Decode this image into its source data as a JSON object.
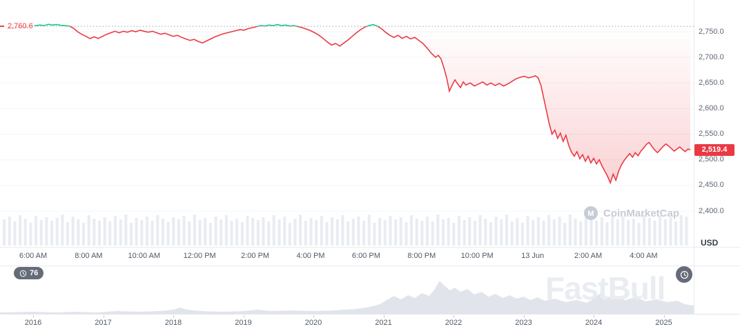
{
  "colors": {
    "up": "#16c784",
    "down": "#ea3943",
    "badge_bg": "#ea3943",
    "volume_bar": "#e9edf2",
    "navigator_fill": "#e1e5eb",
    "grid": "#f3f5f8",
    "axis_text": "#5d6573"
  },
  "price_axis": {
    "unit_label": "USD",
    "current_price_label": "2,519.4",
    "reference_price_label": "2,760.6",
    "ticks": [
      {
        "label": "2,750.0",
        "value": 2750
      },
      {
        "label": "2,700.0",
        "value": 2700
      },
      {
        "label": "2,650.0",
        "value": 2650
      },
      {
        "label": "2,600.0",
        "value": 2600
      },
      {
        "label": "2,550.0",
        "value": 2550
      },
      {
        "label": "2,500.0",
        "value": 2500
      },
      {
        "label": "2,450.0",
        "value": 2450
      },
      {
        "label": "2,400.0",
        "value": 2400
      }
    ]
  },
  "time_axis": {
    "labels": [
      {
        "text": "6:00 AM",
        "hour": 6
      },
      {
        "text": "8:00 AM",
        "hour": 8
      },
      {
        "text": "10:00 AM",
        "hour": 10
      },
      {
        "text": "12:00 PM",
        "hour": 12
      },
      {
        "text": "2:00 PM",
        "hour": 14
      },
      {
        "text": "4:00 PM",
        "hour": 16
      },
      {
        "text": "6:00 PM",
        "hour": 18
      },
      {
        "text": "8:00 PM",
        "hour": 20
      },
      {
        "text": "10:00 PM",
        "hour": 22
      },
      {
        "text": "13 Jun",
        "hour": 24
      },
      {
        "text": "2:00 AM",
        "hour": 26
      },
      {
        "text": "4:00 AM",
        "hour": 28
      }
    ]
  },
  "overlays": {
    "countdown_value": "76",
    "chart_watermark": "CoinMarketCap",
    "page_watermark": "FastBull"
  },
  "navigator": {
    "year_labels": [
      {
        "text": "2016",
        "year": 2016
      },
      {
        "text": "2017",
        "year": 2017
      },
      {
        "text": "2018",
        "year": 2018
      },
      {
        "text": "2019",
        "year": 2019
      },
      {
        "text": "2020",
        "year": 2020
      },
      {
        "text": "2021",
        "year": 2021
      },
      {
        "text": "2022",
        "year": 2022
      },
      {
        "text": "2023",
        "year": 2023
      },
      {
        "text": "2024",
        "year": 2024
      },
      {
        "text": "2025",
        "year": 2025
      }
    ]
  },
  "chart_data": {
    "type": "line",
    "title": "",
    "y_axis_unit": "USD",
    "reference_price": 2760.6,
    "current_price": 2519.4,
    "ylim": [
      2390,
      2775
    ],
    "y_ticks": [
      2750,
      2700,
      2650,
      2600,
      2550,
      2500,
      2450,
      2400
    ],
    "x_unit": "hour of day (decimal; 24+ = next day 13 Jun)",
    "x_tick_hours": [
      6,
      8,
      10,
      12,
      14,
      16,
      18,
      20,
      22,
      24,
      26,
      28
    ],
    "x_tick_labels": [
      "6:00 AM",
      "8:00 AM",
      "10:00 AM",
      "12:00 PM",
      "2:00 PM",
      "4:00 PM",
      "6:00 PM",
      "8:00 PM",
      "10:00 PM",
      "13 Jun",
      "2:00 AM",
      "4:00 AM"
    ],
    "series": [
      {
        "name": "price",
        "points": [
          [
            5.05,
            2756
          ],
          [
            5.2,
            2758
          ],
          [
            5.35,
            2757
          ],
          [
            5.5,
            2759
          ],
          [
            5.65,
            2760
          ],
          [
            5.8,
            2759
          ],
          [
            5.95,
            2761
          ],
          [
            6.1,
            2762
          ],
          [
            6.25,
            2763
          ],
          [
            6.4,
            2762
          ],
          [
            6.55,
            2764.5
          ],
          [
            6.7,
            2763
          ],
          [
            6.85,
            2764
          ],
          [
            7.0,
            2762.5
          ],
          [
            7.15,
            2762
          ],
          [
            7.3,
            2761
          ],
          [
            7.45,
            2757
          ],
          [
            7.6,
            2750
          ],
          [
            7.75,
            2745
          ],
          [
            7.9,
            2741
          ],
          [
            8.05,
            2736.5
          ],
          [
            8.2,
            2740
          ],
          [
            8.35,
            2737
          ],
          [
            8.5,
            2741
          ],
          [
            8.65,
            2745
          ],
          [
            8.8,
            2748
          ],
          [
            8.95,
            2751
          ],
          [
            9.1,
            2748
          ],
          [
            9.25,
            2751
          ],
          [
            9.4,
            2749
          ],
          [
            9.55,
            2752
          ],
          [
            9.7,
            2750
          ],
          [
            9.85,
            2753
          ],
          [
            10.0,
            2751
          ],
          [
            10.15,
            2749
          ],
          [
            10.3,
            2751
          ],
          [
            10.45,
            2748
          ],
          [
            10.6,
            2745
          ],
          [
            10.75,
            2747
          ],
          [
            10.9,
            2744
          ],
          [
            11.05,
            2741
          ],
          [
            11.2,
            2743
          ],
          [
            11.35,
            2739
          ],
          [
            11.5,
            2736
          ],
          [
            11.65,
            2733
          ],
          [
            11.8,
            2735
          ],
          [
            11.95,
            2731
          ],
          [
            12.1,
            2728
          ],
          [
            12.25,
            2732
          ],
          [
            12.4,
            2736
          ],
          [
            12.55,
            2740
          ],
          [
            12.7,
            2743
          ],
          [
            12.85,
            2746
          ],
          [
            13.0,
            2748
          ],
          [
            13.15,
            2750
          ],
          [
            13.3,
            2752
          ],
          [
            13.45,
            2754
          ],
          [
            13.6,
            2753
          ],
          [
            13.75,
            2756
          ],
          [
            13.9,
            2758
          ],
          [
            14.05,
            2760
          ],
          [
            14.2,
            2762
          ],
          [
            14.35,
            2761
          ],
          [
            14.5,
            2763
          ],
          [
            14.65,
            2762
          ],
          [
            14.8,
            2764
          ],
          [
            14.95,
            2762
          ],
          [
            15.1,
            2763
          ],
          [
            15.25,
            2761
          ],
          [
            15.4,
            2762
          ],
          [
            15.55,
            2760
          ],
          [
            15.7,
            2758
          ],
          [
            15.85,
            2755
          ],
          [
            16.0,
            2752
          ],
          [
            16.15,
            2748
          ],
          [
            16.3,
            2743
          ],
          [
            16.45,
            2737
          ],
          [
            16.6,
            2730
          ],
          [
            16.75,
            2724
          ],
          [
            16.9,
            2727
          ],
          [
            17.05,
            2722
          ],
          [
            17.2,
            2728
          ],
          [
            17.35,
            2734
          ],
          [
            17.5,
            2741
          ],
          [
            17.65,
            2748
          ],
          [
            17.8,
            2754
          ],
          [
            17.95,
            2759
          ],
          [
            18.1,
            2762
          ],
          [
            18.25,
            2764
          ],
          [
            18.4,
            2761
          ],
          [
            18.55,
            2756
          ],
          [
            18.7,
            2749
          ],
          [
            18.85,
            2743
          ],
          [
            19.0,
            2739
          ],
          [
            19.15,
            2743
          ],
          [
            19.3,
            2737
          ],
          [
            19.45,
            2741
          ],
          [
            19.6,
            2736
          ],
          [
            19.75,
            2739
          ],
          [
            19.9,
            2733
          ],
          [
            20.05,
            2727
          ],
          [
            20.2,
            2718
          ],
          [
            20.35,
            2708
          ],
          [
            20.5,
            2700
          ],
          [
            20.6,
            2704
          ],
          [
            20.7,
            2697
          ],
          [
            20.8,
            2680
          ],
          [
            20.9,
            2660
          ],
          [
            21.0,
            2634
          ],
          [
            21.1,
            2646
          ],
          [
            21.2,
            2656
          ],
          [
            21.3,
            2648
          ],
          [
            21.4,
            2641
          ],
          [
            21.5,
            2652
          ],
          [
            21.6,
            2646
          ],
          [
            21.75,
            2650
          ],
          [
            21.9,
            2644
          ],
          [
            22.05,
            2648
          ],
          [
            22.2,
            2652
          ],
          [
            22.35,
            2646
          ],
          [
            22.5,
            2650
          ],
          [
            22.65,
            2645
          ],
          [
            22.8,
            2649
          ],
          [
            22.95,
            2644
          ],
          [
            23.1,
            2648
          ],
          [
            23.25,
            2653
          ],
          [
            23.4,
            2658
          ],
          [
            23.55,
            2661
          ],
          [
            23.7,
            2663
          ],
          [
            23.85,
            2660
          ],
          [
            24.0,
            2662
          ],
          [
            24.1,
            2664
          ],
          [
            24.2,
            2660
          ],
          [
            24.3,
            2645
          ],
          [
            24.4,
            2620
          ],
          [
            24.5,
            2595
          ],
          [
            24.6,
            2570
          ],
          [
            24.7,
            2550
          ],
          [
            24.8,
            2558
          ],
          [
            24.9,
            2542
          ],
          [
            25.0,
            2552
          ],
          [
            25.1,
            2536
          ],
          [
            25.2,
            2548
          ],
          [
            25.3,
            2528
          ],
          [
            25.4,
            2515
          ],
          [
            25.5,
            2507
          ],
          [
            25.6,
            2516
          ],
          [
            25.7,
            2502
          ],
          [
            25.8,
            2510
          ],
          [
            25.9,
            2497
          ],
          [
            26.0,
            2507
          ],
          [
            26.1,
            2494
          ],
          [
            26.2,
            2503
          ],
          [
            26.3,
            2492
          ],
          [
            26.4,
            2500
          ],
          [
            26.5,
            2488
          ],
          [
            26.6,
            2478
          ],
          [
            26.7,
            2468
          ],
          [
            26.8,
            2455
          ],
          [
            26.9,
            2472
          ],
          [
            27.0,
            2460
          ],
          [
            27.1,
            2478
          ],
          [
            27.2,
            2490
          ],
          [
            27.3,
            2499
          ],
          [
            27.4,
            2506
          ],
          [
            27.5,
            2512
          ],
          [
            27.6,
            2505
          ],
          [
            27.7,
            2514
          ],
          [
            27.8,
            2508
          ],
          [
            27.9,
            2517
          ],
          [
            28.0,
            2523
          ],
          [
            28.1,
            2530
          ],
          [
            28.2,
            2534
          ],
          [
            28.3,
            2526
          ],
          [
            28.4,
            2519
          ],
          [
            28.5,
            2514
          ],
          [
            28.6,
            2520
          ],
          [
            28.7,
            2526
          ],
          [
            28.8,
            2531
          ],
          [
            28.9,
            2527
          ],
          [
            29.0,
            2522
          ],
          [
            29.1,
            2517
          ],
          [
            29.2,
            2521
          ],
          [
            29.3,
            2525
          ],
          [
            29.4,
            2520
          ],
          [
            29.5,
            2516
          ],
          [
            29.6,
            2521
          ],
          [
            29.68,
            2519.4
          ]
        ]
      }
    ],
    "volume_norm": [
      38,
      42,
      35,
      44,
      39,
      33,
      43,
      37,
      41,
      36,
      40,
      45,
      34,
      42,
      38,
      33,
      44,
      39,
      36,
      41,
      35,
      43,
      38,
      45,
      33,
      40,
      37,
      42,
      36,
      44,
      39,
      34,
      41,
      38,
      43,
      35,
      45,
      37,
      40,
      33,
      42,
      38,
      44,
      36,
      39,
      34,
      43,
      40,
      37,
      41,
      35,
      44,
      38,
      42,
      33,
      39,
      45,
      36,
      40,
      37,
      43,
      34,
      41,
      38,
      44,
      35,
      39,
      42,
      36,
      45,
      33,
      40,
      37,
      43,
      38,
      41,
      34,
      44,
      39,
      36,
      42,
      35,
      45,
      38,
      40,
      33,
      43,
      37,
      41,
      36,
      44,
      39,
      34,
      42,
      38,
      45,
      35,
      40,
      33,
      43,
      37,
      41,
      36,
      44,
      38,
      42,
      33,
      45,
      39,
      35,
      40,
      43,
      36,
      41,
      34,
      44,
      38,
      42,
      37,
      39,
      33,
      45,
      40,
      36,
      43,
      38,
      41,
      35,
      44,
      42
    ],
    "navigator": {
      "x_years": [
        2016,
        2017,
        2018,
        2019,
        2020,
        2021,
        2022,
        2023,
        2024,
        2025
      ],
      "profile": [
        [
          2015.53,
          2
        ],
        [
          2016.0,
          3
        ],
        [
          2016.3,
          2
        ],
        [
          2016.6,
          3
        ],
        [
          2016.9,
          2
        ],
        [
          2017.2,
          4
        ],
        [
          2017.5,
          3
        ],
        [
          2017.8,
          4
        ],
        [
          2018.0,
          6
        ],
        [
          2018.1,
          9
        ],
        [
          2018.2,
          6
        ],
        [
          2018.4,
          4
        ],
        [
          2018.7,
          3
        ],
        [
          2019.0,
          4
        ],
        [
          2019.2,
          6
        ],
        [
          2019.4,
          4
        ],
        [
          2019.7,
          5
        ],
        [
          2020.0,
          4
        ],
        [
          2020.3,
          5
        ],
        [
          2020.6,
          7
        ],
        [
          2020.8,
          10
        ],
        [
          2020.95,
          14
        ],
        [
          2021.05,
          20
        ],
        [
          2021.15,
          26
        ],
        [
          2021.25,
          21
        ],
        [
          2021.35,
          27
        ],
        [
          2021.45,
          23
        ],
        [
          2021.55,
          30
        ],
        [
          2021.65,
          26
        ],
        [
          2021.72,
          34
        ],
        [
          2021.8,
          48
        ],
        [
          2021.88,
          40
        ],
        [
          2021.95,
          34
        ],
        [
          2022.02,
          38
        ],
        [
          2022.1,
          32
        ],
        [
          2022.2,
          36
        ],
        [
          2022.3,
          28
        ],
        [
          2022.4,
          32
        ],
        [
          2022.5,
          25
        ],
        [
          2022.6,
          29
        ],
        [
          2022.7,
          23
        ],
        [
          2022.8,
          27
        ],
        [
          2022.9,
          22
        ],
        [
          2023.0,
          25
        ],
        [
          2023.1,
          20
        ],
        [
          2023.2,
          24
        ],
        [
          2023.3,
          19
        ],
        [
          2023.45,
          22
        ],
        [
          2023.6,
          17
        ],
        [
          2023.75,
          20
        ],
        [
          2023.9,
          16
        ],
        [
          2024.0,
          22
        ],
        [
          2024.1,
          30
        ],
        [
          2024.2,
          24
        ],
        [
          2024.3,
          27
        ],
        [
          2024.45,
          20
        ],
        [
          2024.6,
          24
        ],
        [
          2024.75,
          18
        ],
        [
          2024.9,
          21
        ],
        [
          2025.05,
          17
        ],
        [
          2025.2,
          19
        ],
        [
          2025.3,
          14
        ],
        [
          2025.43,
          12
        ]
      ]
    }
  }
}
